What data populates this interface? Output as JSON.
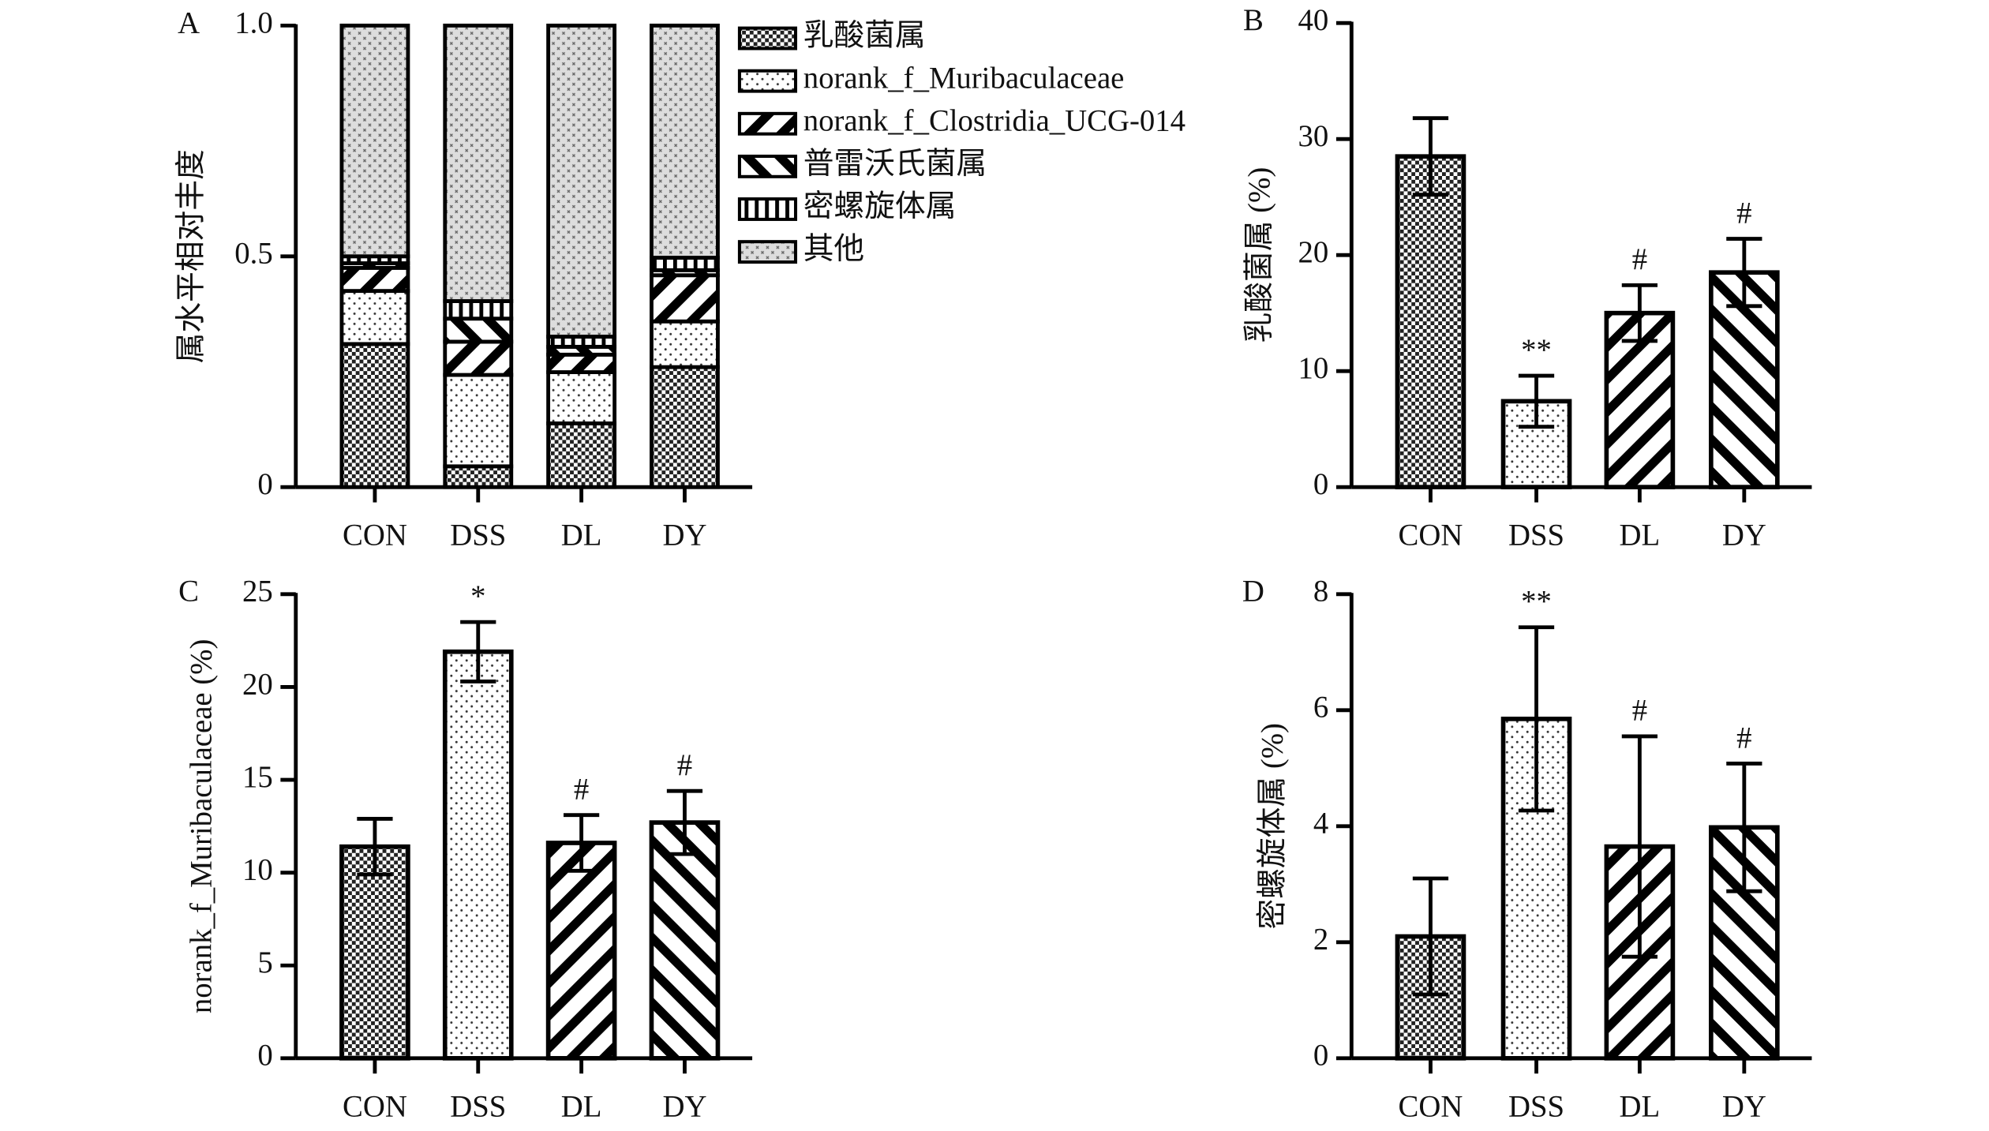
{
  "chart_data": [
    {
      "type": "stacked-bar",
      "panel": "A",
      "ylabel": "属水平相对丰度",
      "categories": [
        "CON",
        "DSS",
        "DL",
        "DY"
      ],
      "ylim": [
        0,
        1
      ],
      "yticks": [
        0,
        0.5,
        {
          "value": 1,
          "label": "1.0"
        }
      ],
      "series": [
        {
          "name": "乳酸菌属",
          "pattern": "checker",
          "values": [
            0.31,
            0.045,
            0.138,
            0.26
          ]
        },
        {
          "name": "norank_f_Muribaculaceae",
          "pattern": "dots",
          "values": [
            0.115,
            0.198,
            0.111,
            0.099
          ]
        },
        {
          "name": "norank_f_Clostridia_UCG-014",
          "pattern": "backslash",
          "values": [
            0.05,
            0.072,
            0.038,
            0.1
          ]
        },
        {
          "name": "普雷沃氏菌属",
          "pattern": "slash",
          "values": [
            0.01,
            0.05,
            0.017,
            0.011
          ]
        },
        {
          "name": "密螺旋体属",
          "pattern": "vlines",
          "values": [
            0.015,
            0.038,
            0.022,
            0.027
          ]
        },
        {
          "name": "其他",
          "pattern": "speckle",
          "values": [
            0.5,
            0.597,
            0.674,
            0.503
          ]
        }
      ]
    },
    {
      "type": "bar",
      "panel": "B",
      "ylabel": "乳酸菌属 (%)",
      "categories": [
        "CON",
        "DSS",
        "DL",
        "DY"
      ],
      "values": [
        28.5,
        7.4,
        15,
        18.5
      ],
      "errors": [
        3.3,
        2.2,
        2.4,
        2.9
      ],
      "annotations": [
        null,
        "**",
        "#",
        "#"
      ],
      "patterns": [
        "checker",
        "dots",
        "backslash",
        "slash"
      ],
      "ylim": [
        0,
        40
      ],
      "yticks": [
        0,
        10,
        20,
        30,
        40
      ]
    },
    {
      "type": "bar",
      "panel": "C",
      "ylabel": "norank_f_Muribaculaceae (%)",
      "categories": [
        "CON",
        "DSS",
        "DL",
        "DY"
      ],
      "values": [
        11.4,
        21.9,
        11.6,
        12.7
      ],
      "errors": [
        1.5,
        1.6,
        1.5,
        1.7
      ],
      "annotations": [
        null,
        "*",
        "#",
        "#"
      ],
      "patterns": [
        "checker",
        "dots",
        "backslash",
        "slash"
      ],
      "ylim": [
        0,
        25
      ],
      "yticks": [
        0,
        5,
        10,
        15,
        20,
        25
      ]
    },
    {
      "type": "bar",
      "panel": "D",
      "ylabel": "密螺旋体属 (%)",
      "categories": [
        "CON",
        "DSS",
        "DL",
        "DY"
      ],
      "values": [
        2.1,
        5.85,
        3.65,
        3.98
      ],
      "errors": [
        1.0,
        1.58,
        1.9,
        1.1
      ],
      "annotations": [
        null,
        "**",
        "#",
        "#"
      ],
      "patterns": [
        "checker",
        "dots",
        "backslash",
        "slash"
      ],
      "ylim": [
        0,
        8
      ],
      "yticks": [
        0,
        2,
        4,
        6,
        8
      ]
    }
  ]
}
